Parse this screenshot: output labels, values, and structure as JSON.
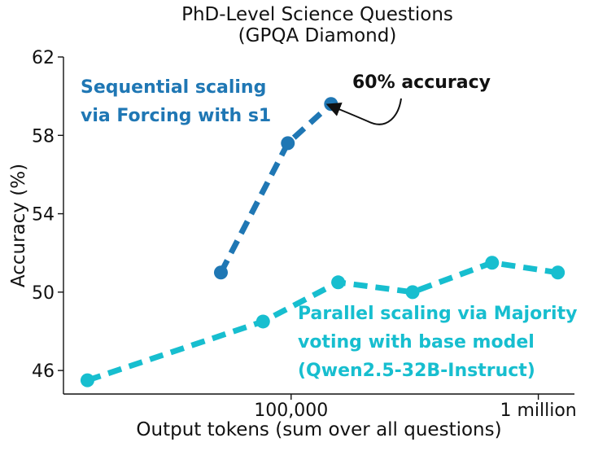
{
  "chart_data": {
    "type": "line",
    "title": "PhD-Level Science Questions",
    "subtitle": "(GPQA Diamond)",
    "xlabel": "Output tokens (sum over all questions)",
    "ylabel": "Accuracy (%)",
    "x_scale": "log",
    "xlim": [
      12000,
      1400000
    ],
    "ylim": [
      44.8,
      62
    ],
    "x_ticks": [
      {
        "value": 100000,
        "label": "100,000"
      },
      {
        "value": 1000000,
        "label": "1 million"
      }
    ],
    "y_ticks": [
      {
        "value": 46,
        "label": "46"
      },
      {
        "value": 50,
        "label": "50"
      },
      {
        "value": 54,
        "label": "54"
      },
      {
        "value": 58,
        "label": "58"
      },
      {
        "value": 62,
        "label": "62"
      }
    ],
    "grid": false,
    "series": [
      {
        "key": "sequential",
        "color": "#1f77b4",
        "points": [
          {
            "x": 52000,
            "y": 51.0
          },
          {
            "x": 97000,
            "y": 57.6
          },
          {
            "x": 145000,
            "y": 59.6
          }
        ]
      },
      {
        "key": "parallel",
        "color": "#17becf",
        "points": [
          {
            "x": 15000,
            "y": 45.5
          },
          {
            "x": 77000,
            "y": 48.5
          },
          {
            "x": 155000,
            "y": 50.5
          },
          {
            "x": 310000,
            "y": 50.0
          },
          {
            "x": 650000,
            "y": 51.5
          },
          {
            "x": 1200000,
            "y": 51.0
          }
        ]
      }
    ],
    "annotations": {
      "sequential_label": [
        "Sequential scaling",
        "via Forcing with s1"
      ],
      "parallel_label": [
        "Parallel scaling via Majority",
        "voting with base model",
        "(Qwen2.5-32B-Instruct)"
      ],
      "accuracy_callout": "60% accuracy"
    }
  }
}
